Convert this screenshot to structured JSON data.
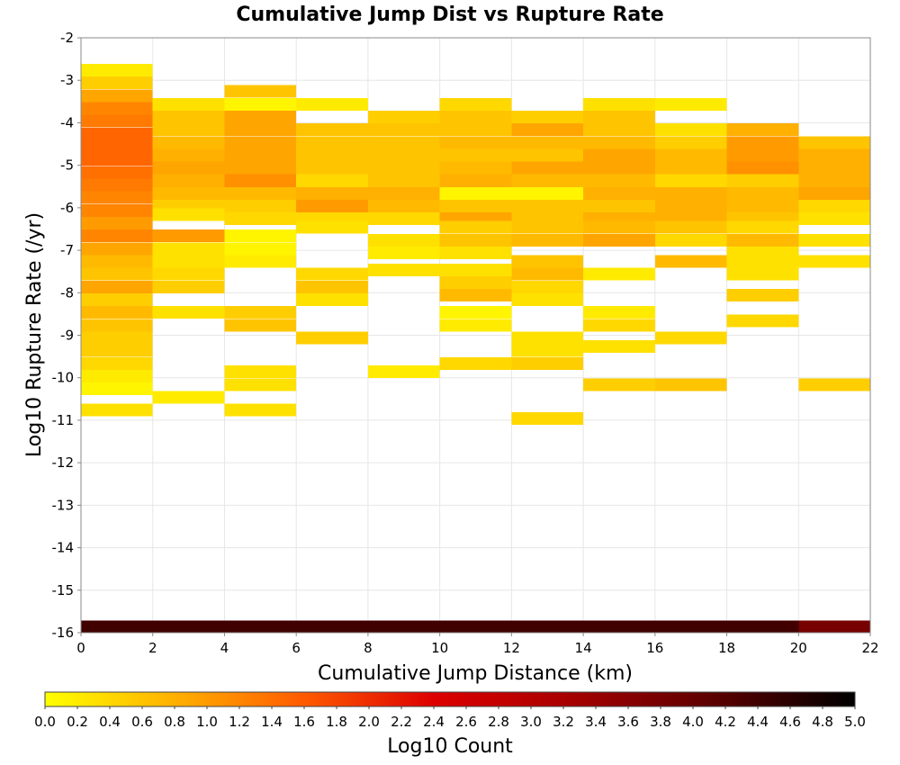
{
  "chart_data": {
    "type": "heatmap",
    "title": "Cumulative Jump Dist vs Rupture Rate",
    "xlabel": "Cumulative Jump Distance (km)",
    "ylabel": "Log10 Rupture Rate (/yr)",
    "xlim": [
      0,
      22
    ],
    "ylim": [
      -16,
      -2
    ],
    "x_ticks": [
      "0",
      "2",
      "4",
      "6",
      "8",
      "10",
      "12",
      "14",
      "16",
      "18",
      "20",
      "22"
    ],
    "y_ticks": [
      "-2",
      "-3",
      "-4",
      "-5",
      "-6",
      "-7",
      "-8",
      "-9",
      "-10",
      "-11",
      "-12",
      "-13",
      "-14",
      "-15",
      "-16"
    ],
    "grid": true,
    "x_bin_width": 2,
    "y_bin_height": 0.286,
    "colorbar": {
      "label": "Log10 Count",
      "range": [
        0,
        5
      ],
      "ticks": [
        "0.0",
        "0.2",
        "0.4",
        "0.6",
        "0.8",
        "1.0",
        "1.2",
        "1.4",
        "1.6",
        "1.8",
        "2.0",
        "2.2",
        "2.4",
        "2.6",
        "2.8",
        "3.0",
        "3.2",
        "3.4",
        "3.6",
        "3.8",
        "4.0",
        "4.2",
        "4.4",
        "4.6",
        "4.8",
        "5.0"
      ],
      "stops": [
        {
          "value": 0.0,
          "color": "#ffff00"
        },
        {
          "value": 0.8,
          "color": "#ffb000"
        },
        {
          "value": 1.6,
          "color": "#ff5a00"
        },
        {
          "value": 2.4,
          "color": "#dd0000"
        },
        {
          "value": 3.2,
          "color": "#aa0000"
        },
        {
          "value": 4.2,
          "color": "#550000"
        },
        {
          "value": 5.0,
          "color": "#000000"
        }
      ]
    },
    "columns": [
      {
        "x": 0,
        "cells": [
          [
            -2.9,
            0.2
          ],
          [
            -3.2,
            0.5
          ],
          [
            -3.5,
            0.9
          ],
          [
            -3.8,
            1.2
          ],
          [
            -4.1,
            1.3
          ],
          [
            -4.4,
            1.5
          ],
          [
            -4.7,
            1.5
          ],
          [
            -5.0,
            1.5
          ],
          [
            -5.3,
            1.4
          ],
          [
            -5.6,
            1.3
          ],
          [
            -5.9,
            1.2
          ],
          [
            -6.2,
            1.2
          ],
          [
            -6.5,
            1.0
          ],
          [
            -6.8,
            1.2
          ],
          [
            -7.1,
            0.9
          ],
          [
            -7.4,
            0.7
          ],
          [
            -7.7,
            0.6
          ],
          [
            -8.0,
            0.9
          ],
          [
            -8.3,
            0.5
          ],
          [
            -8.6,
            0.7
          ],
          [
            -8.9,
            0.6
          ],
          [
            -9.2,
            0.5
          ],
          [
            -9.5,
            0.5
          ],
          [
            -9.8,
            0.4
          ],
          [
            -10.1,
            0.2
          ],
          [
            -10.4,
            0.1
          ],
          [
            -10.9,
            0.3
          ],
          [
            -16.0,
            4.4
          ]
        ]
      },
      {
        "x": 2,
        "cells": [
          [
            -3.7,
            0.3
          ],
          [
            -4.0,
            0.6
          ],
          [
            -4.3,
            0.6
          ],
          [
            -4.6,
            0.7
          ],
          [
            -4.9,
            0.8
          ],
          [
            -5.2,
            0.9
          ],
          [
            -5.5,
            0.8
          ],
          [
            -5.8,
            0.7
          ],
          [
            -6.1,
            0.5
          ],
          [
            -6.3,
            0.3
          ],
          [
            -6.8,
            1.0
          ],
          [
            -7.1,
            0.3
          ],
          [
            -7.4,
            0.3
          ],
          [
            -7.7,
            0.4
          ],
          [
            -8.0,
            0.5
          ],
          [
            -8.6,
            0.3
          ],
          [
            -10.6,
            0.2
          ],
          [
            -16.0,
            4.4
          ]
        ]
      },
      {
        "x": 4,
        "cells": [
          [
            -3.4,
            0.6
          ],
          [
            -3.7,
            0.1
          ],
          [
            -4.0,
            0.9
          ],
          [
            -4.3,
            0.9
          ],
          [
            -4.6,
            0.9
          ],
          [
            -4.9,
            0.9
          ],
          [
            -5.2,
            0.9
          ],
          [
            -5.5,
            1.1
          ],
          [
            -5.8,
            0.7
          ],
          [
            -6.1,
            0.5
          ],
          [
            -6.4,
            0.4
          ],
          [
            -6.8,
            0.1
          ],
          [
            -7.1,
            0.1
          ],
          [
            -7.4,
            0.2
          ],
          [
            -8.6,
            0.5
          ],
          [
            -8.9,
            0.6
          ],
          [
            -10.0,
            0.3
          ],
          [
            -10.3,
            0.3
          ],
          [
            -10.9,
            0.3
          ],
          [
            -16.0,
            4.4
          ]
        ]
      },
      {
        "x": 6,
        "cells": [
          [
            -3.7,
            0.2
          ],
          [
            -4.3,
            0.6
          ],
          [
            -4.6,
            0.6
          ],
          [
            -4.9,
            0.6
          ],
          [
            -5.2,
            0.6
          ],
          [
            -5.5,
            0.4
          ],
          [
            -5.8,
            0.8
          ],
          [
            -6.1,
            1.0
          ],
          [
            -6.4,
            0.4
          ],
          [
            -6.6,
            0.3
          ],
          [
            -7.7,
            0.4
          ],
          [
            -8.0,
            0.6
          ],
          [
            -8.3,
            0.3
          ],
          [
            -9.2,
            0.5
          ],
          [
            -16.0,
            4.4
          ]
        ]
      },
      {
        "x": 8,
        "cells": [
          [
            -4.0,
            0.5
          ],
          [
            -4.3,
            0.6
          ],
          [
            -4.6,
            0.6
          ],
          [
            -4.9,
            0.6
          ],
          [
            -5.2,
            0.6
          ],
          [
            -5.5,
            0.6
          ],
          [
            -5.8,
            0.8
          ],
          [
            -6.1,
            0.7
          ],
          [
            -6.4,
            0.4
          ],
          [
            -6.9,
            0.3
          ],
          [
            -7.2,
            0.2
          ],
          [
            -7.6,
            0.3
          ],
          [
            -10.0,
            0.2
          ],
          [
            -16.0,
            4.4
          ]
        ]
      },
      {
        "x": 10,
        "cells": [
          [
            -3.7,
            0.4
          ],
          [
            -4.0,
            0.6
          ],
          [
            -4.3,
            0.6
          ],
          [
            -4.6,
            0.7
          ],
          [
            -4.9,
            0.6
          ],
          [
            -5.2,
            0.7
          ],
          [
            -5.5,
            0.8
          ],
          [
            -5.8,
            0.1
          ],
          [
            -6.1,
            0.6
          ],
          [
            -6.4,
            0.9
          ],
          [
            -6.6,
            0.5
          ],
          [
            -6.9,
            0.6
          ],
          [
            -7.2,
            0.3
          ],
          [
            -7.6,
            0.3
          ],
          [
            -7.9,
            0.5
          ],
          [
            -8.2,
            0.7
          ],
          [
            -8.6,
            0.1
          ],
          [
            -8.9,
            0.2
          ],
          [
            -9.8,
            0.4
          ],
          [
            -16.0,
            4.4
          ]
        ]
      },
      {
        "x": 12,
        "cells": [
          [
            -4.0,
            0.5
          ],
          [
            -4.3,
            0.9
          ],
          [
            -4.6,
            0.7
          ],
          [
            -4.9,
            0.6
          ],
          [
            -5.2,
            0.9
          ],
          [
            -5.5,
            0.7
          ],
          [
            -5.8,
            0.1
          ],
          [
            -6.1,
            0.6
          ],
          [
            -6.4,
            0.6
          ],
          [
            -6.6,
            0.6
          ],
          [
            -6.9,
            0.7
          ],
          [
            -7.4,
            0.6
          ],
          [
            -7.7,
            0.7
          ],
          [
            -8.0,
            0.4
          ],
          [
            -8.3,
            0.3
          ],
          [
            -9.2,
            0.3
          ],
          [
            -9.5,
            0.3
          ],
          [
            -9.8,
            0.5
          ],
          [
            -11.1,
            0.4
          ],
          [
            -16.0,
            4.4
          ]
        ]
      },
      {
        "x": 14,
        "cells": [
          [
            -3.7,
            0.3
          ],
          [
            -4.0,
            0.6
          ],
          [
            -4.3,
            0.6
          ],
          [
            -4.6,
            0.7
          ],
          [
            -4.9,
            0.9
          ],
          [
            -5.2,
            0.9
          ],
          [
            -5.5,
            0.7
          ],
          [
            -5.8,
            0.8
          ],
          [
            -6.1,
            0.6
          ],
          [
            -6.4,
            0.8
          ],
          [
            -6.6,
            0.7
          ],
          [
            -6.9,
            0.9
          ],
          [
            -7.7,
            0.2
          ],
          [
            -8.6,
            0.2
          ],
          [
            -8.9,
            0.4
          ],
          [
            -9.4,
            0.3
          ],
          [
            -10.3,
            0.5
          ],
          [
            -16.0,
            4.4
          ]
        ]
      },
      {
        "x": 16,
        "cells": [
          [
            -3.7,
            0.2
          ],
          [
            -4.3,
            0.3
          ],
          [
            -4.6,
            0.5
          ],
          [
            -4.9,
            0.7
          ],
          [
            -5.2,
            0.7
          ],
          [
            -5.5,
            0.4
          ],
          [
            -5.8,
            0.8
          ],
          [
            -6.1,
            0.8
          ],
          [
            -6.4,
            0.8
          ],
          [
            -6.6,
            0.6
          ],
          [
            -6.9,
            0.4
          ],
          [
            -7.4,
            0.7
          ],
          [
            -9.2,
            0.4
          ],
          [
            -10.3,
            0.6
          ],
          [
            -16.0,
            4.4
          ]
        ]
      },
      {
        "x": 18,
        "cells": [
          [
            -4.3,
            0.8
          ],
          [
            -4.6,
            1.0
          ],
          [
            -4.9,
            1.0
          ],
          [
            -5.2,
            1.1
          ],
          [
            -5.5,
            0.5
          ],
          [
            -5.8,
            0.7
          ],
          [
            -6.1,
            0.7
          ],
          [
            -6.4,
            0.6
          ],
          [
            -6.6,
            0.4
          ],
          [
            -6.9,
            0.7
          ],
          [
            -7.2,
            0.3
          ],
          [
            -7.4,
            0.3
          ],
          [
            -7.7,
            0.3
          ],
          [
            -8.2,
            0.5
          ],
          [
            -8.8,
            0.4
          ],
          [
            -16.0,
            4.4
          ]
        ]
      },
      {
        "x": 20,
        "cells": [
          [
            -4.6,
            0.6
          ],
          [
            -4.9,
            0.8
          ],
          [
            -5.2,
            0.8
          ],
          [
            -5.5,
            0.8
          ],
          [
            -5.8,
            0.9
          ],
          [
            -6.1,
            0.4
          ],
          [
            -6.4,
            0.3
          ],
          [
            -6.9,
            0.3
          ],
          [
            -7.4,
            0.3
          ],
          [
            -10.3,
            0.5
          ],
          [
            -16.0,
            3.8
          ]
        ]
      }
    ]
  }
}
